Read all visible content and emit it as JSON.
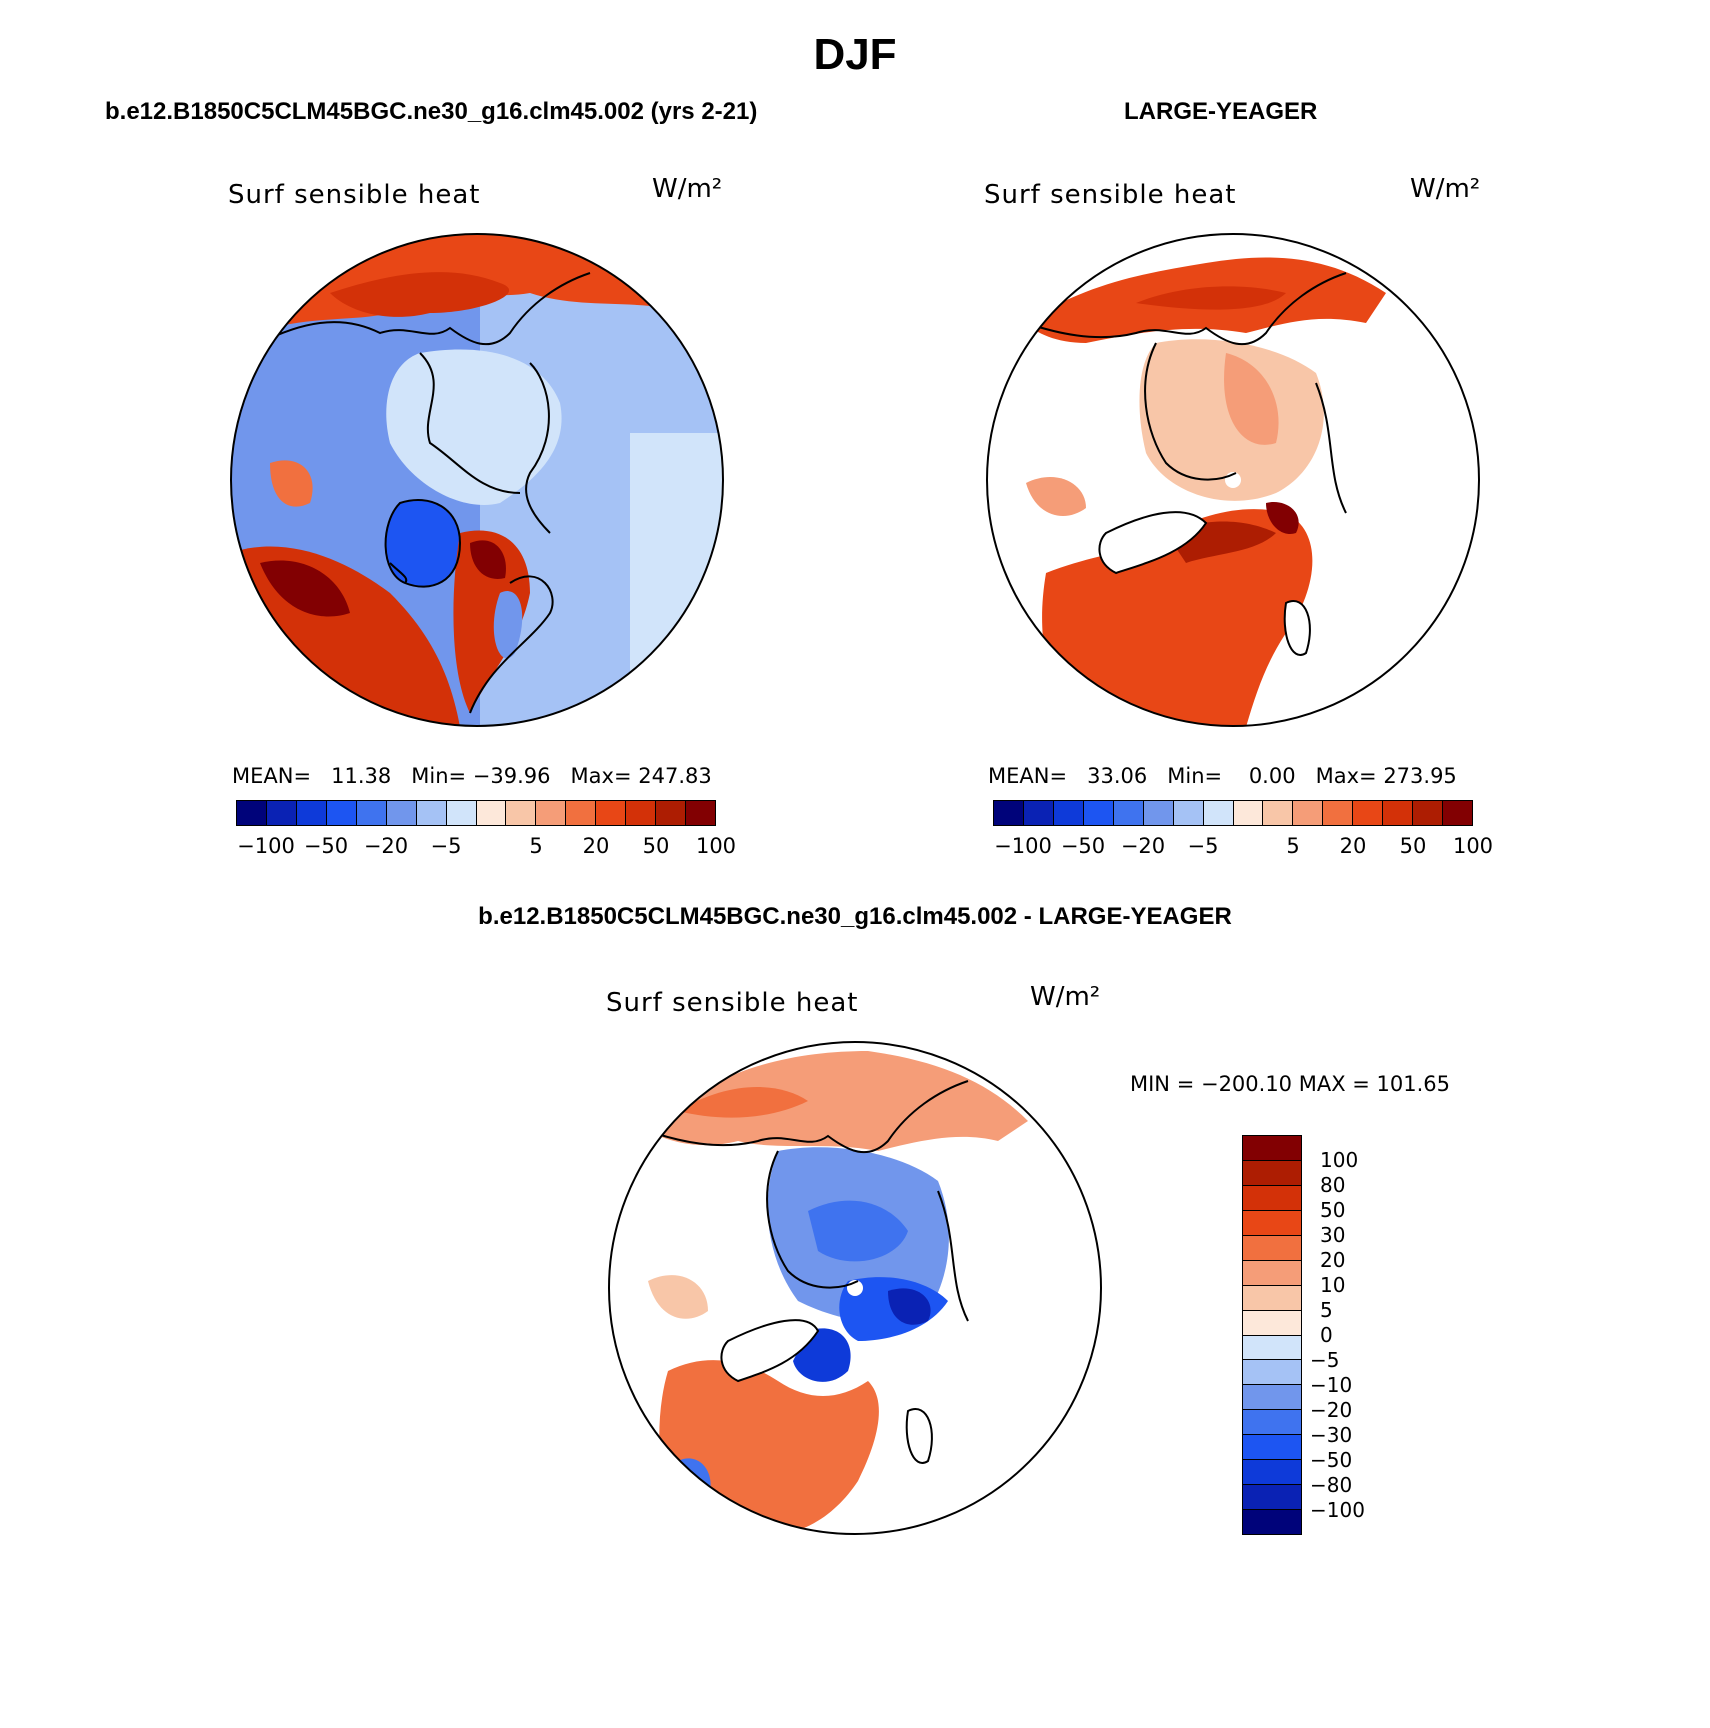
{
  "main_title": "DJF",
  "palette": {
    "colors": [
      "#00037a",
      "#0a22b4",
      "#0e3ad9",
      "#1d55f2",
      "#3f73ef",
      "#7196ec",
      "#a5c2f5",
      "#d1e4fa",
      "#fde8da",
      "#f8c6a8",
      "#f59d78",
      "#f1703f",
      "#e84716",
      "#d33108",
      "#ad1d02",
      "#820002"
    ],
    "coastline": "#000000"
  },
  "panels": [
    {
      "case": "b.e12.B1850C5CLM45BGC.ne30_g16.clm45.002 (yrs 2-21)",
      "variable": "Surf sensible heat",
      "units": "W/m²",
      "stats": {
        "mean_label": "MEAN=",
        "mean": "11.38",
        "min_label": "Min=",
        "min": "−39.96",
        "max_label": "Max=",
        "max": "247.83"
      },
      "colorbar_ticks": [
        "−100",
        "−50",
        "−20",
        "−5",
        "5",
        "20",
        "50",
        "100"
      ]
    },
    {
      "case": "LARGE-YEAGER",
      "variable": "Surf sensible heat",
      "units": "W/m²",
      "stats": {
        "mean_label": "MEAN=",
        "mean": "33.06",
        "min_label": "Min=",
        "min": "0.00",
        "max_label": "Max=",
        "max": "273.95"
      },
      "colorbar_ticks": [
        "−100",
        "−50",
        "−20",
        "−5",
        "5",
        "20",
        "50",
        "100"
      ]
    }
  ],
  "difference": {
    "title": "b.e12.B1850C5CLM45BGC.ne30_g16.clm45.002 - LARGE-YEAGER",
    "variable": "Surf sensible heat",
    "units": "W/m²",
    "range": "MIN = −200.10 MAX = 101.65",
    "colorbar_ticks": [
      "100",
      "80",
      "50",
      "30",
      "20",
      "10",
      "5",
      "0",
      "−5",
      "−10",
      "−20",
      "−30",
      "−50",
      "−80",
      "−100"
    ]
  }
}
